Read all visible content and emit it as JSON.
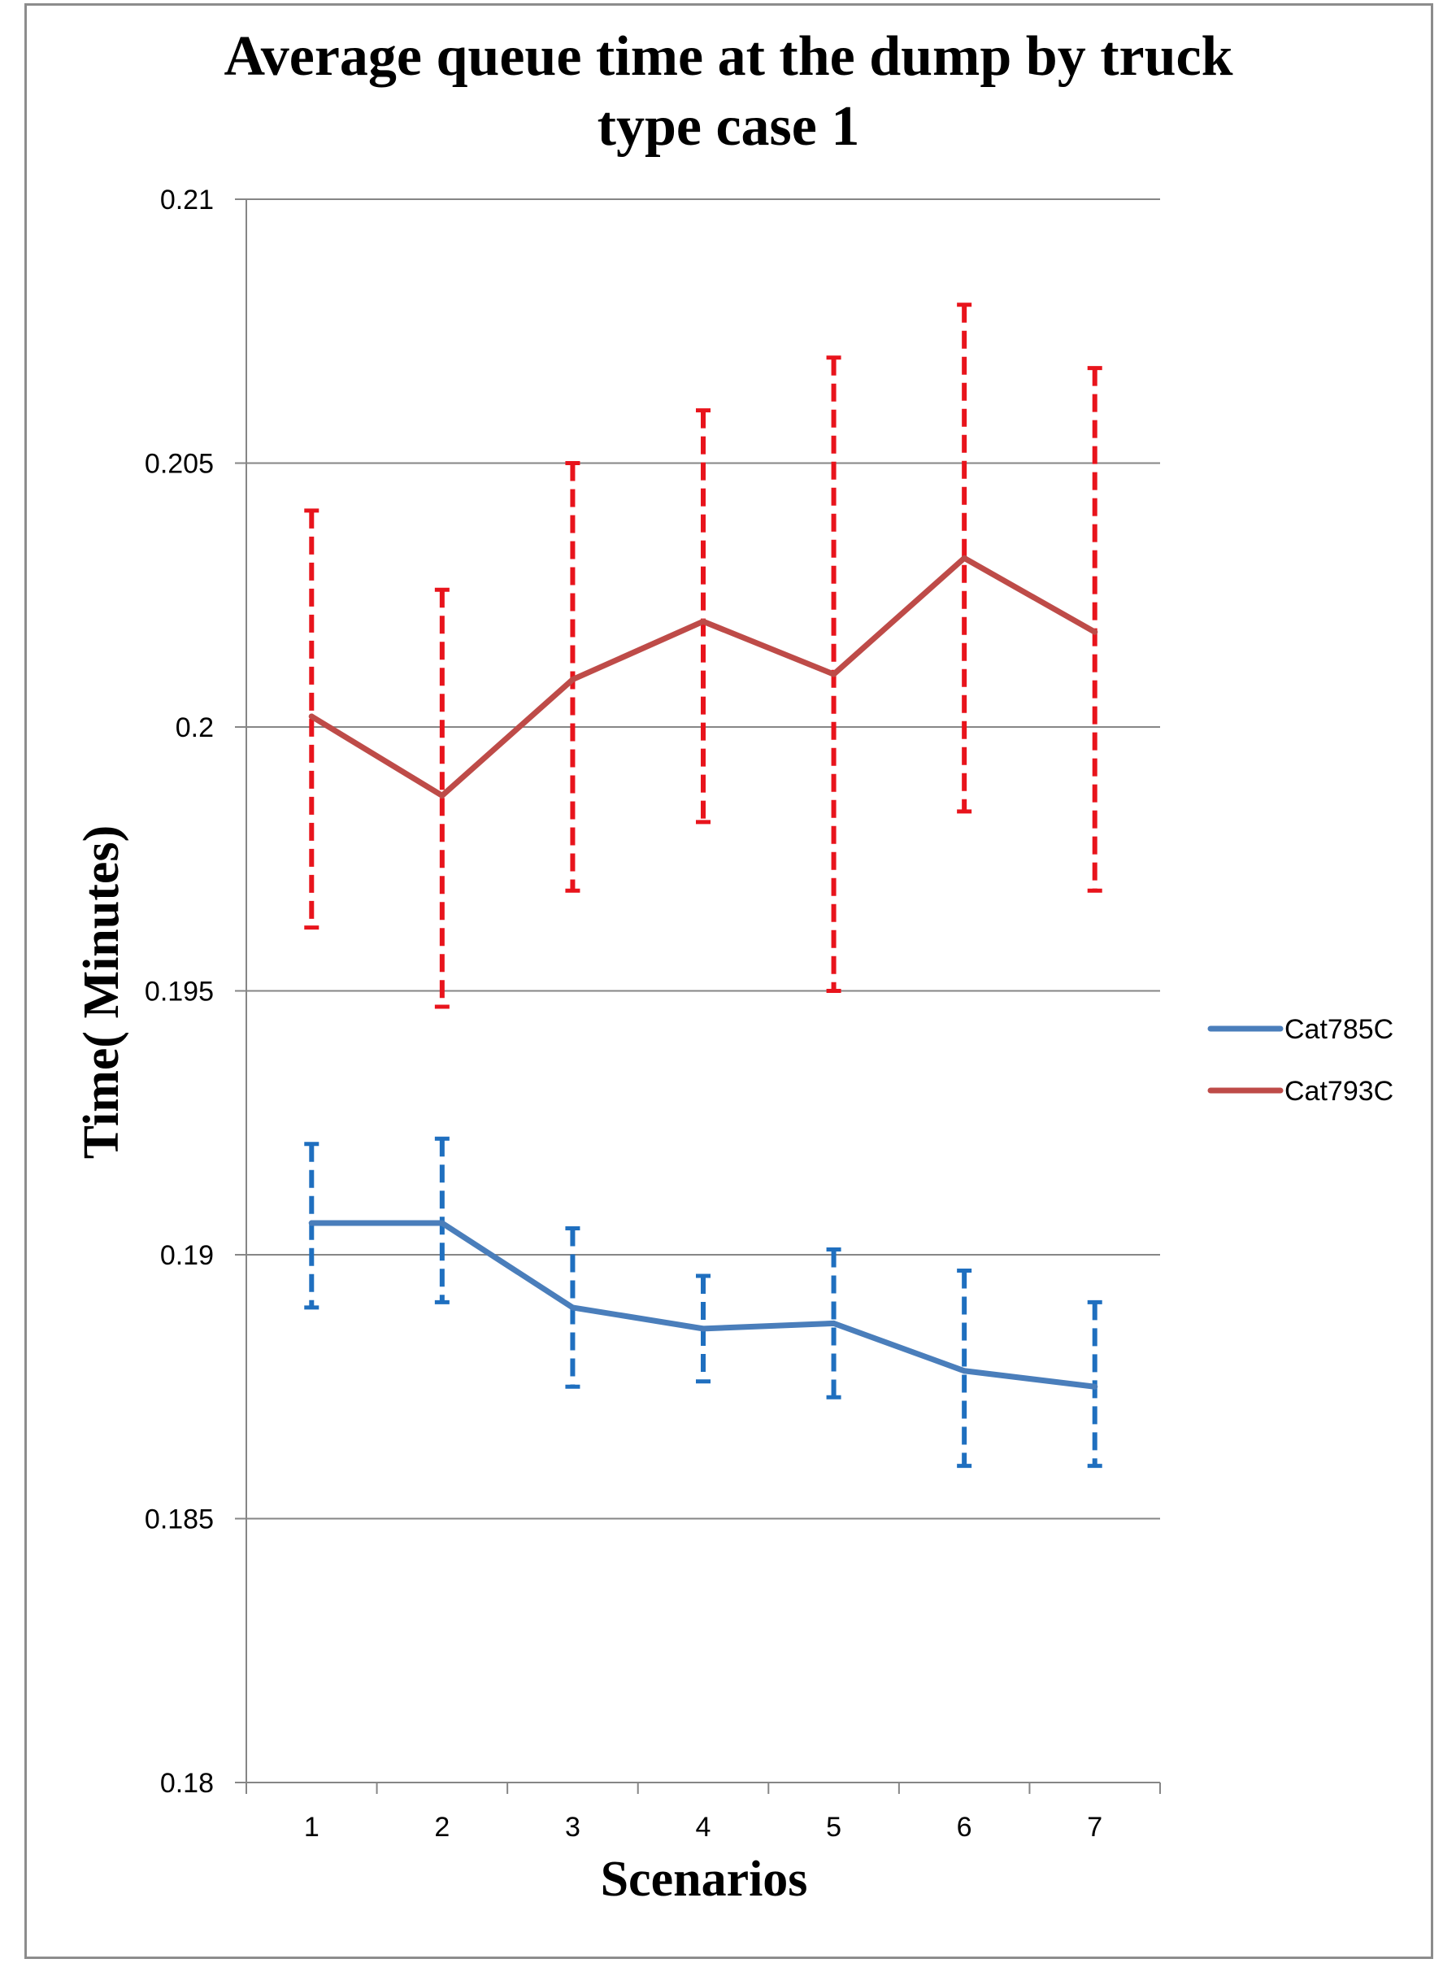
{
  "chart_data": {
    "type": "line",
    "title_lines": [
      "Average queue time at the dump by truck",
      "type case 1"
    ],
    "xlabel": "Scenarios",
    "ylabel": "Time( Minutes)",
    "categories": [
      "1",
      "2",
      "3",
      "4",
      "5",
      "6",
      "7"
    ],
    "ylim": [
      0.18,
      0.21
    ],
    "yticks": [
      0.18,
      0.185,
      0.19,
      0.195,
      0.2,
      0.205,
      0.21
    ],
    "ytick_labels": [
      "0.18",
      "0.185",
      "0.19",
      "0.195",
      "0.2",
      "0.205",
      "0.21"
    ],
    "grid": true,
    "legend_position": "right",
    "series": [
      {
        "name": "Cat785C",
        "color": "#4a7ebb",
        "error_color": "#1f6fbf",
        "values": [
          0.1906,
          0.1906,
          0.189,
          0.1886,
          0.1887,
          0.1878,
          0.1875
        ],
        "err_high": [
          0.1921,
          0.1922,
          0.1905,
          0.1896,
          0.1901,
          0.1897,
          0.1891
        ],
        "err_low": [
          0.189,
          0.1891,
          0.1875,
          0.1876,
          0.1873,
          0.186,
          0.186
        ]
      },
      {
        "name": "Cat793C",
        "color": "#be4b48",
        "error_color": "#e8141c",
        "values": [
          0.2002,
          0.1987,
          0.2009,
          0.202,
          0.201,
          0.2032,
          0.2018
        ],
        "err_high": [
          0.2041,
          0.2026,
          0.205,
          0.206,
          0.207,
          0.208,
          0.2068
        ],
        "err_low": [
          0.1962,
          0.1947,
          0.1969,
          0.1982,
          0.195,
          0.1984,
          0.1969
        ]
      }
    ]
  }
}
